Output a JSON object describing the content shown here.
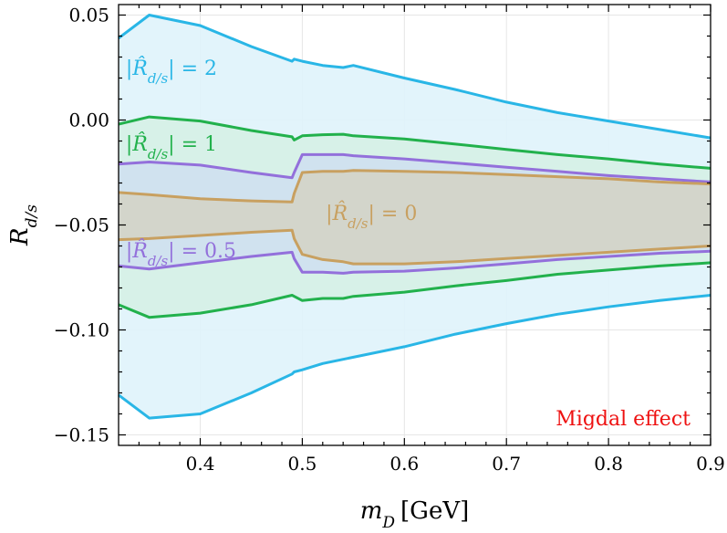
{
  "chart_data": {
    "type": "area",
    "xlabel": "m_D [GeV]",
    "xlabel_main": "m",
    "xlabel_sub": "D",
    "xlabel_unit": "[GeV]",
    "ylabel": "R_{d/s}",
    "ylabel_main": "R",
    "ylabel_sub": "d/s",
    "xlim": [
      0.32,
      0.9
    ],
    "ylim": [
      -0.155,
      0.055
    ],
    "xticks": [
      0.4,
      0.5,
      0.6,
      0.7,
      0.8,
      0.9
    ],
    "xtick_labels": [
      "0.4",
      "0.5",
      "0.6",
      "0.7",
      "0.8",
      "0.9"
    ],
    "yticks": [
      0.05,
      0.0,
      -0.05,
      -0.1,
      -0.15
    ],
    "ytick_labels": [
      "0.05",
      "0.00",
      "−0.05",
      "−0.10",
      "−0.15"
    ],
    "grid": true,
    "annotation": "Migdal effect",
    "x": [
      0.32,
      0.35,
      0.4,
      0.45,
      0.49,
      0.492,
      0.5,
      0.52,
      0.54,
      0.55,
      0.6,
      0.65,
      0.7,
      0.75,
      0.8,
      0.85,
      0.9
    ],
    "bands": [
      {
        "name": "|R̂d/s| = 2",
        "label_prefix": "|R̂",
        "label_sub": "d/s",
        "label_suffix": "| = 2",
        "color": "#29b6e6",
        "fill": "#dff3fb",
        "upper": [
          0.039,
          0.05,
          0.045,
          0.035,
          0.028,
          0.029,
          0.028,
          0.026,
          0.025,
          0.026,
          0.02,
          0.0145,
          0.0085,
          0.0035,
          -0.0005,
          -0.0045,
          -0.0085
        ],
        "lower": [
          -0.131,
          -0.142,
          -0.14,
          -0.13,
          -0.121,
          -0.12,
          -0.119,
          -0.116,
          -0.114,
          -0.113,
          -0.108,
          -0.102,
          -0.097,
          -0.0925,
          -0.089,
          -0.086,
          -0.0835
        ]
      },
      {
        "name": "|R̂d/s| = 1",
        "label_prefix": "|R̂",
        "label_sub": "d/s",
        "label_suffix": "| = 1",
        "color": "#22b14c",
        "fill": "#d6f1e6",
        "upper": [
          -0.002,
          0.0015,
          -0.0005,
          -0.005,
          -0.008,
          -0.0095,
          -0.0075,
          -0.007,
          -0.0068,
          -0.0075,
          -0.009,
          -0.0115,
          -0.014,
          -0.0165,
          -0.0185,
          -0.021,
          -0.023
        ],
        "lower": [
          -0.088,
          -0.094,
          -0.092,
          -0.088,
          -0.0835,
          -0.084,
          -0.086,
          -0.085,
          -0.085,
          -0.084,
          -0.082,
          -0.079,
          -0.0765,
          -0.0735,
          -0.0715,
          -0.0695,
          -0.068
        ]
      },
      {
        "name": "|R̂d/s| = 0.5",
        "label_prefix": "|R̂",
        "label_sub": "d/s",
        "label_suffix": "| = 0.5",
        "color": "#9370db",
        "fill": "#cfe0ef",
        "upper": [
          -0.021,
          -0.02,
          -0.0215,
          -0.025,
          -0.0275,
          -0.025,
          -0.0165,
          -0.0165,
          -0.0165,
          -0.017,
          -0.0185,
          -0.0205,
          -0.0225,
          -0.0245,
          -0.0265,
          -0.028,
          -0.0295
        ],
        "lower": [
          -0.0695,
          -0.071,
          -0.068,
          -0.065,
          -0.063,
          -0.066,
          -0.0725,
          -0.0725,
          -0.073,
          -0.0725,
          -0.072,
          -0.0705,
          -0.0685,
          -0.0665,
          -0.065,
          -0.0635,
          -0.0625
        ]
      },
      {
        "name": "|R̂d/s| = 0",
        "label_prefix": "|R̂",
        "label_sub": "d/s",
        "label_suffix": "| = 0",
        "color": "#c8a060",
        "fill": "#d3d4c6",
        "upper": [
          -0.0345,
          -0.0355,
          -0.0375,
          -0.0385,
          -0.039,
          -0.035,
          -0.025,
          -0.0245,
          -0.0245,
          -0.024,
          -0.0245,
          -0.025,
          -0.026,
          -0.027,
          -0.028,
          -0.0295,
          -0.0305
        ],
        "lower": [
          -0.057,
          -0.0565,
          -0.055,
          -0.0535,
          -0.0525,
          -0.0565,
          -0.064,
          -0.0665,
          -0.0675,
          -0.0685,
          -0.0685,
          -0.0675,
          -0.066,
          -0.0645,
          -0.063,
          -0.0615,
          -0.06
        ]
      }
    ]
  },
  "colors": {
    "annotation": "#ee1111",
    "grid": "#e6e6e6",
    "frame": "#000000"
  }
}
